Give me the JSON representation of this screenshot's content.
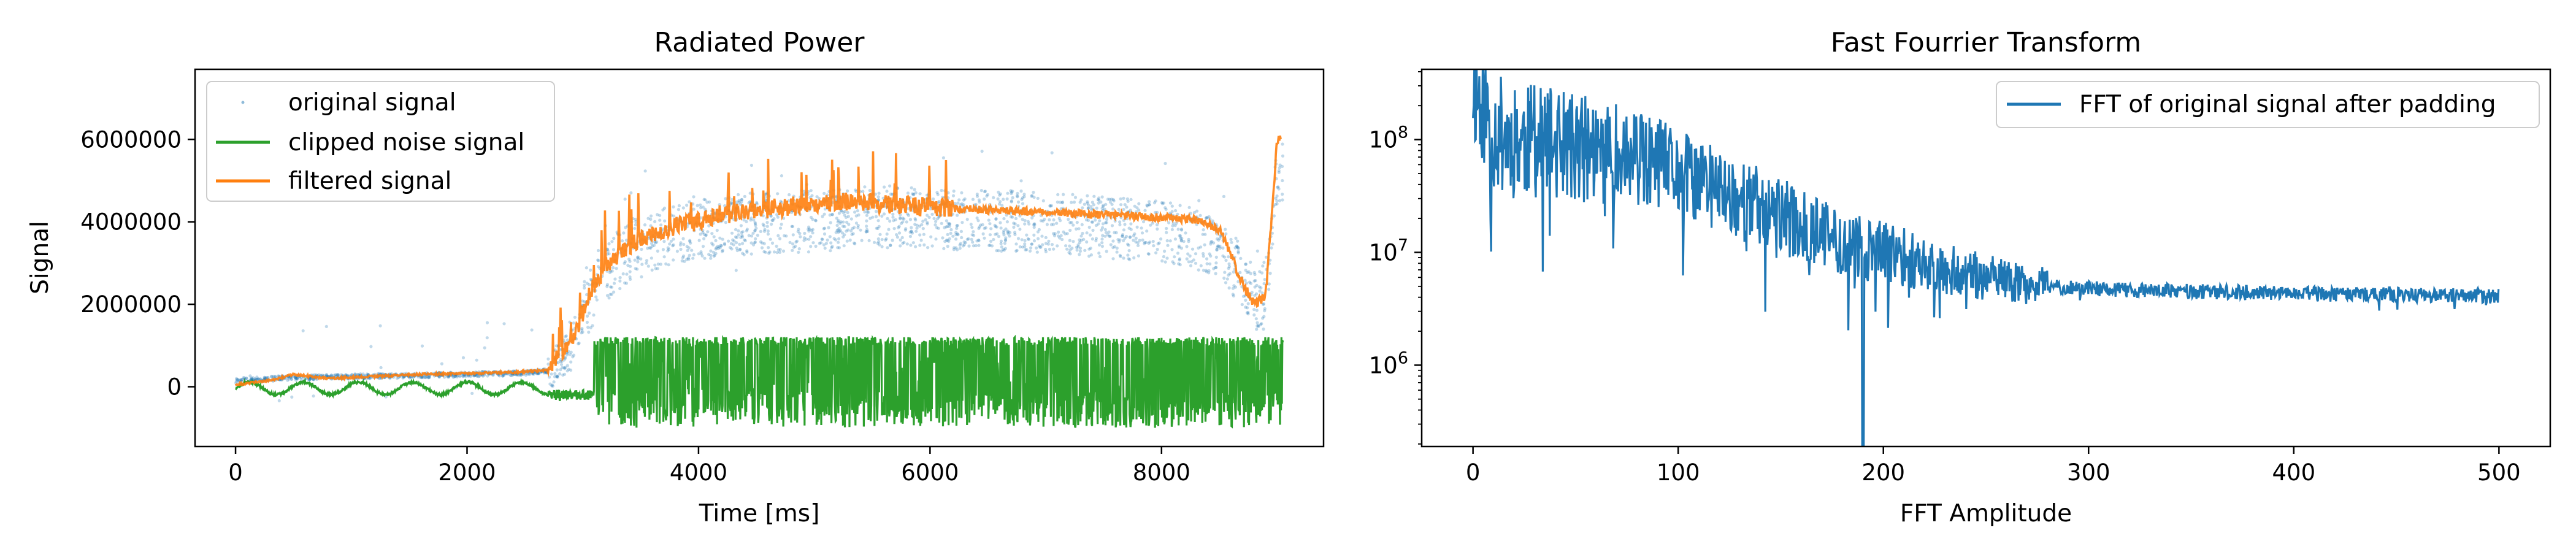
{
  "chart_data": [
    {
      "type": "line",
      "title": "Radiated Power",
      "xlabel": "Time [ms]",
      "ylabel": "Signal",
      "xlim": [
        -350,
        9400
      ],
      "ylim": [
        -1450000,
        7700000
      ],
      "xticks": [
        0,
        2000,
        4000,
        6000,
        8000
      ],
      "xtick_labels": [
        "0",
        "2000",
        "4000",
        "6000",
        "8000"
      ],
      "yticks": [
        0,
        2000000,
        4000000,
        6000000
      ],
      "ytick_labels": [
        "0",
        "2000000",
        "4000000",
        "6000000"
      ],
      "legend_position": "top-left",
      "grid": false,
      "series": [
        {
          "name": "original signal",
          "style": "scatter",
          "color": "#1f77b4",
          "x": [
            0,
            500,
            1000,
            1500,
            2000,
            2500,
            2700,
            2900,
            3000,
            3200,
            3400,
            3600,
            3800,
            4000,
            4400,
            4800,
            5200,
            5600,
            6000,
            6400,
            6800,
            7200,
            7600,
            8000,
            8300,
            8500,
            8700,
            8800,
            8900,
            9000
          ],
          "y": [
            150000,
            220000,
            250000,
            270000,
            300000,
            330000,
            400000,
            900000,
            1800000,
            2800000,
            3300000,
            3500000,
            3700000,
            3800000,
            3950000,
            4000000,
            4050000,
            4150000,
            4100000,
            4050000,
            4000000,
            3950000,
            3850000,
            3750000,
            3600000,
            3300000,
            2700000,
            2100000,
            2300000,
            5200000
          ]
        },
        {
          "name": "clipped noise signal",
          "style": "line",
          "color": "#2ca02c",
          "x": [
            0,
            200,
            400,
            600,
            800,
            1000,
            1200,
            1400,
            1600,
            1800,
            2000,
            2200,
            2400,
            2600,
            2800,
            3000,
            3100,
            9000
          ],
          "y": [
            0,
            100000,
            -150000,
            100000,
            -150000,
            100000,
            -150000,
            100000,
            -150000,
            100000,
            -150000,
            100000,
            -100000,
            50000,
            -300000,
            0,
            1200000,
            1200000
          ],
          "clip_range": [
            -1000000,
            1200000
          ]
        },
        {
          "name": "filtered signal",
          "style": "line",
          "color": "#ff7f0e",
          "x": [
            0,
            300,
            500,
            800,
            1200,
            1600,
            2000,
            2400,
            2700,
            2900,
            3100,
            3300,
            3500,
            3800,
            4000,
            4300,
            4600,
            5000,
            5300,
            5500,
            5800,
            6100,
            6400,
            6700,
            7000,
            7300,
            7600,
            8000,
            8300,
            8500,
            8600,
            8700,
            8800,
            8900,
            9000
          ],
          "y": [
            50000,
            150000,
            300000,
            200000,
            250000,
            300000,
            320000,
            350000,
            400000,
            1100000,
            2500000,
            3200000,
            3600000,
            3900000,
            4000000,
            4200000,
            4300000,
            4400000,
            4500000,
            4450000,
            4400000,
            4350000,
            4300000,
            4250000,
            4250000,
            4200000,
            4150000,
            4100000,
            4050000,
            3800000,
            3200000,
            2500000,
            2000000,
            2200000,
            6000000
          ]
        }
      ]
    },
    {
      "type": "line",
      "title": "Fast Fourrier Transform",
      "xlabel": "FFT Amplitude",
      "ylabel": "",
      "xlim": [
        -25,
        525
      ],
      "ylim": [
        190000,
        420000000
      ],
      "yscale": "log",
      "xticks": [
        0,
        100,
        200,
        300,
        400,
        500
      ],
      "xtick_labels": [
        "0",
        "100",
        "200",
        "300",
        "400",
        "500"
      ],
      "yticks": [
        1000000,
        10000000,
        100000000
      ],
      "ytick_labels": [
        {
          "base": "10",
          "exp": "6"
        },
        {
          "base": "10",
          "exp": "7"
        },
        {
          "base": "10",
          "exp": "8"
        }
      ],
      "legend_position": "top-right",
      "grid": false,
      "series": [
        {
          "name": "FFT of original signal after padding",
          "color": "#1f77b4",
          "x": [
            0,
            5,
            10,
            20,
            40,
            60,
            80,
            100,
            120,
            140,
            160,
            180,
            190,
            200,
            220,
            240,
            260,
            280,
            300,
            320,
            350,
            400,
            450,
            500
          ],
          "y": [
            300000000,
            200000000,
            120000000,
            100000000,
            90000000,
            80000000,
            65000000,
            50000000,
            35000000,
            25000000,
            17000000,
            12000000,
            150000,
            10000000,
            8000000,
            6500000,
            5500000,
            5000000,
            4800000,
            4600000,
            4500000,
            4300000,
            4200000,
            4100000
          ]
        }
      ]
    }
  ]
}
